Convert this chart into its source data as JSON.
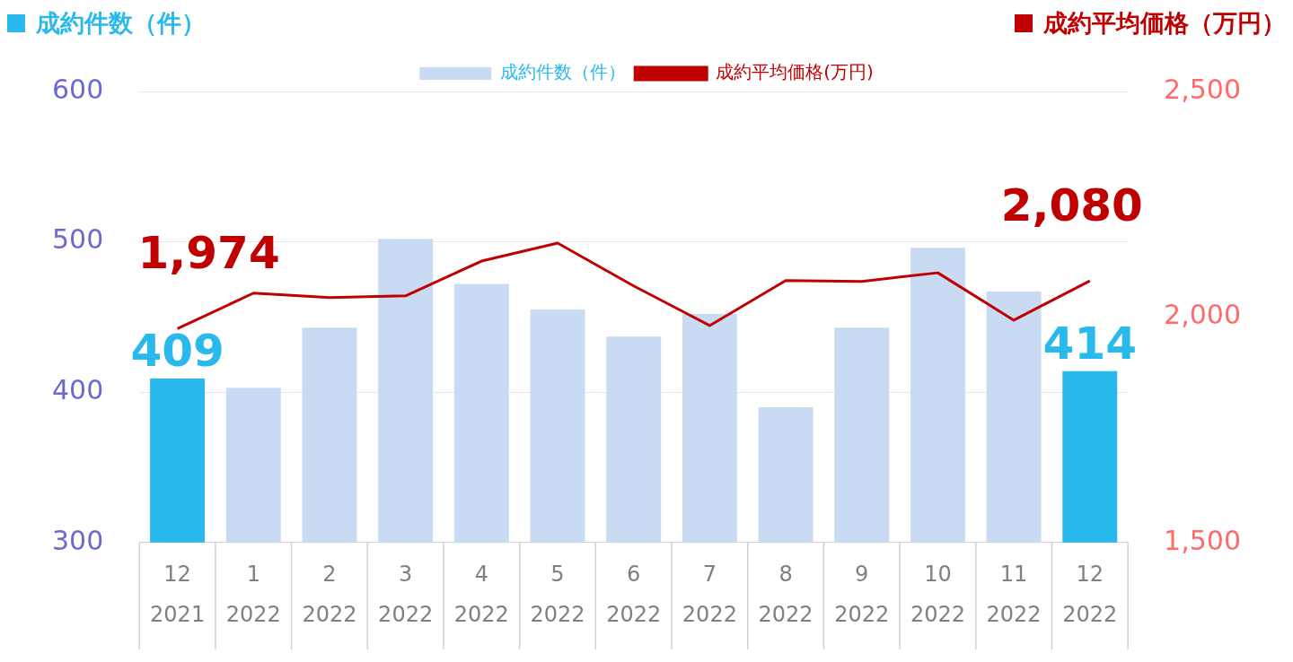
{
  "chart_data": {
    "type": "bar",
    "ylabel": "成約件数（件）",
    "y2label": "成約平均価格（万円）",
    "categories": [
      "12\n2021",
      "1\n2022",
      "2\n2022",
      "3\n2022",
      "4\n2022",
      "5\n2022",
      "6\n2022",
      "7\n2022",
      "8\n2022",
      "9\n2022",
      "10\n2022",
      "11\n2022",
      "12\n2022"
    ],
    "series": [
      {
        "name": "成約件数（件）",
        "color": "#c9dbf2",
        "colors": [
          "#29b9ec",
          "#c9dbf2",
          "#c9dbf2",
          "#c9dbf2",
          "#c9dbf2",
          "#c9dbf2",
          "#c9dbf2",
          "#c9dbf2",
          "#c9dbf2",
          "#c9dbf2",
          "#c9dbf2",
          "#c9dbf2",
          "#29b9ec"
        ],
        "values": [
          409,
          403,
          443,
          502,
          472,
          455,
          437,
          452,
          390,
          443,
          496,
          467,
          414
        ],
        "value_labels": [
          "409",
          null,
          null,
          null,
          null,
          null,
          null,
          null,
          null,
          null,
          null,
          null,
          "414"
        ]
      },
      {
        "name": "成約平均価格(万円)",
        "type": "line",
        "axis": "y2",
        "color": "#c00000",
        "values": [
          1974,
          2053,
          2043,
          2047,
          2124,
          2164,
          2069,
          1981,
          2081,
          2079,
          2098,
          1993,
          2080
        ],
        "value_labels": [
          "1,974",
          null,
          null,
          null,
          null,
          null,
          null,
          null,
          null,
          null,
          null,
          null,
          "2,080"
        ],
        "marker": "none"
      }
    ],
    "ylim": [
      300,
      600
    ],
    "yticks": [
      300,
      400,
      500,
      600
    ],
    "y2lim": [
      1500,
      2500
    ],
    "y2ticks": [
      {
        "value": 1500,
        "label": "1,500"
      },
      {
        "value": 2000,
        "label": "2,000"
      },
      {
        "value": 2500,
        "label": "2,500"
      }
    ],
    "grid": "y",
    "legend": "top"
  }
}
